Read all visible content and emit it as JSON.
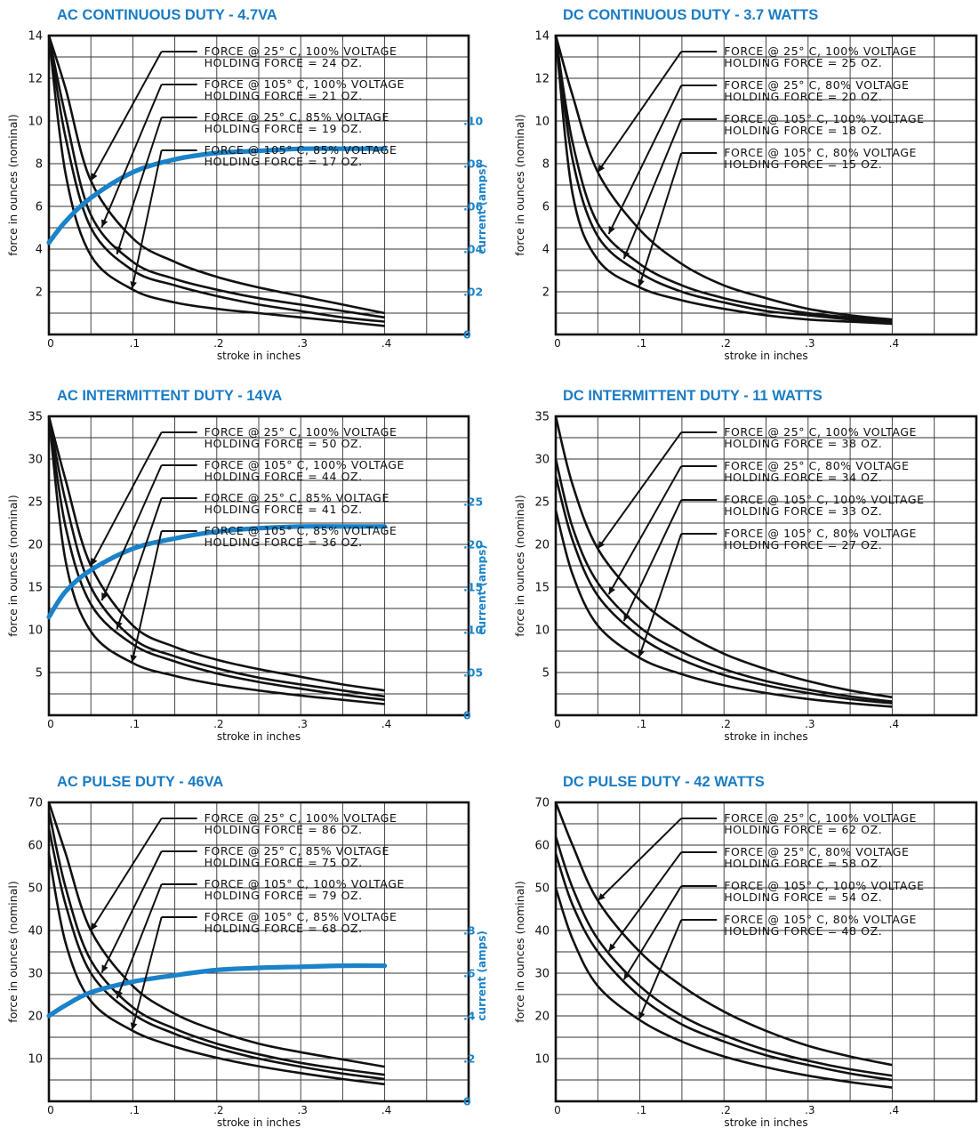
{
  "colors": {
    "curve": "#111111",
    "current": "#1a82c8",
    "title": "#1a7cc4"
  },
  "panels": [
    {
      "title": "AC CONTINUOUS DUTY - 4.7VA",
      "chart_data": {
        "type": "line",
        "title": "AC CONTINUOUS DUTY - 4.7VA",
        "xlabel": "stroke in inches",
        "ylabel": "force in ounces (nominal)",
        "y2label": "current (amps)",
        "xlim": [
          0,
          0.5
        ],
        "ylim": [
          0,
          14
        ],
        "y2lim": [
          0,
          0.14
        ],
        "xticks": [
          "0",
          ".1",
          ".2",
          ".3",
          ".4"
        ],
        "yticks": [
          "2",
          "4",
          "6",
          "8",
          "10",
          "12",
          "14"
        ],
        "y2ticks": [
          "0",
          ".02",
          ".04",
          ".06",
          ".08",
          ".10"
        ],
        "grid": true,
        "series": [
          {
            "name": "FORCE @ 25° C, 100% VOLTAGE",
            "holding": "HOLDING FORCE = 24 OZ.",
            "x": [
              0,
              0.02,
              0.05,
              0.1,
              0.15,
              0.2,
              0.25,
              0.3,
              0.35,
              0.4
            ],
            "y": [
              14,
              11.5,
              7.2,
              4.5,
              3.4,
              2.7,
              2.2,
              1.8,
              1.4,
              1.0
            ]
          },
          {
            "name": "FORCE @ 105° C, 100% VOLTAGE",
            "holding": "HOLDING FORCE = 21 OZ.",
            "x": [
              0,
              0.02,
              0.05,
              0.1,
              0.15,
              0.2,
              0.25,
              0.3,
              0.35,
              0.4
            ],
            "y": [
              14,
              10.2,
              5.6,
              3.4,
              2.6,
              2.1,
              1.7,
              1.4,
              1.1,
              0.8
            ]
          },
          {
            "name": "FORCE @ 25° C, 85% VOLTAGE",
            "holding": "HOLDING FORCE = 19 OZ.",
            "x": [
              0,
              0.02,
              0.05,
              0.1,
              0.15,
              0.2,
              0.25,
              0.3,
              0.35,
              0.4
            ],
            "y": [
              14,
              9.2,
              5.0,
              3.0,
              2.3,
              1.8,
              1.4,
              1.1,
              0.8,
              0.6
            ]
          },
          {
            "name": "FORCE @ 105° C, 85% VOLTAGE",
            "holding": "HOLDING FORCE = 17 OZ.",
            "x": [
              0,
              0.02,
              0.05,
              0.1,
              0.15,
              0.2,
              0.25,
              0.3,
              0.35,
              0.4
            ],
            "y": [
              14,
              7.5,
              3.7,
              2.1,
              1.5,
              1.2,
              1.0,
              0.8,
              0.6,
              0.4
            ]
          }
        ],
        "current": {
          "name": "current (amps)",
          "x": [
            0,
            0.02,
            0.05,
            0.1,
            0.15,
            0.2,
            0.25,
            0.3,
            0.35,
            0.4
          ],
          "y": [
            0.043,
            0.053,
            0.064,
            0.076,
            0.082,
            0.085,
            0.086,
            0.087,
            0.087,
            0.087
          ]
        }
      }
    },
    {
      "title": "DC CONTINUOUS DUTY - 3.7 WATTS",
      "chart_data": {
        "type": "line",
        "title": "DC CONTINUOUS DUTY - 3.7 WATTS",
        "xlabel": "stroke in inches",
        "ylabel": "force in ounces (nominal)",
        "xlim": [
          0,
          0.5
        ],
        "ylim": [
          0,
          14
        ],
        "xticks": [
          "0",
          ".1",
          ".2",
          ".3",
          ".4"
        ],
        "yticks": [
          "2",
          "4",
          "6",
          "8",
          "10",
          "12",
          "14"
        ],
        "grid": true,
        "series": [
          {
            "name": "FORCE @ 25° C, 100% VOLTAGE",
            "holding": "HOLDING FORCE = 25 OZ.",
            "x": [
              0,
              0.02,
              0.05,
              0.1,
              0.15,
              0.2,
              0.25,
              0.3,
              0.35,
              0.4
            ],
            "y": [
              14,
              11.2,
              7.6,
              4.9,
              3.3,
              2.3,
              1.7,
              1.2,
              0.9,
              0.7
            ]
          },
          {
            "name": "FORCE @ 25° C, 80% VOLTAGE",
            "holding": "HOLDING FORCE = 20 OZ.",
            "x": [
              0,
              0.02,
              0.05,
              0.1,
              0.15,
              0.2,
              0.25,
              0.3,
              0.35,
              0.4
            ],
            "y": [
              14,
              9.0,
              5.2,
              3.3,
              2.3,
              1.7,
              1.3,
              1.0,
              0.8,
              0.6
            ]
          },
          {
            "name": "FORCE @ 105° C, 100% VOLTAGE",
            "holding": "HOLDING FORCE = 18 OZ.",
            "x": [
              0,
              0.02,
              0.05,
              0.1,
              0.15,
              0.2,
              0.25,
              0.3,
              0.35,
              0.4
            ],
            "y": [
              14,
              8.2,
              4.6,
              2.9,
              2.0,
              1.5,
              1.1,
              0.9,
              0.7,
              0.5
            ]
          },
          {
            "name": "FORCE @ 105° C, 80% VOLTAGE",
            "holding": "HOLDING FORCE = 15 OZ.",
            "x": [
              0,
              0.02,
              0.05,
              0.1,
              0.15,
              0.2,
              0.25,
              0.3,
              0.35,
              0.4
            ],
            "y": [
              14,
              6.6,
              3.5,
              2.2,
              1.6,
              1.2,
              0.9,
              0.7,
              0.6,
              0.5
            ]
          }
        ]
      }
    },
    {
      "title": "AC INTERMITTENT DUTY - 14VA",
      "chart_data": {
        "type": "line",
        "title": "AC INTERMITTENT DUTY - 14VA",
        "xlabel": "stroke in inches",
        "ylabel": "force in ounces (nominal)",
        "y2label": "current (amps)",
        "xlim": [
          0,
          0.5
        ],
        "ylim": [
          0,
          35
        ],
        "y2lim": [
          0,
          0.35
        ],
        "xticks": [
          "0",
          ".1",
          ".2",
          ".3",
          ".4"
        ],
        "yticks": [
          "5",
          "10",
          "15",
          "20",
          "25",
          "30",
          "35"
        ],
        "y2ticks": [
          "0",
          ".05",
          ".10",
          ".15",
          ".20",
          ".25"
        ],
        "grid": true,
        "series": [
          {
            "name": "FORCE @ 25° C, 100% VOLTAGE",
            "holding": "HOLDING FORCE = 50 OZ.",
            "x": [
              0,
              0.02,
              0.05,
              0.1,
              0.15,
              0.2,
              0.25,
              0.3,
              0.35,
              0.4
            ],
            "y": [
              35,
              27.5,
              17.5,
              10.5,
              8.0,
              6.5,
              5.4,
              4.5,
              3.6,
              2.9
            ]
          },
          {
            "name": "FORCE @ 105° C, 100% VOLTAGE",
            "holding": "HOLDING FORCE = 44 OZ.",
            "x": [
              0,
              0.02,
              0.05,
              0.1,
              0.15,
              0.2,
              0.25,
              0.3,
              0.35,
              0.4
            ],
            "y": [
              35,
              25.0,
              15.0,
              9.0,
              6.9,
              5.5,
              4.4,
              3.6,
              2.9,
              2.2
            ]
          },
          {
            "name": "FORCE @ 25° C, 85% VOLTAGE",
            "holding": "HOLDING FORCE = 41 OZ.",
            "x": [
              0,
              0.02,
              0.05,
              0.1,
              0.15,
              0.2,
              0.25,
              0.3,
              0.35,
              0.4
            ],
            "y": [
              35,
              22.0,
              13.0,
              8.3,
              6.3,
              4.9,
              3.9,
              3.1,
              2.4,
              1.8
            ]
          },
          {
            "name": "FORCE @ 105° C, 85% VOLTAGE",
            "holding": "HOLDING FORCE = 36 OZ.",
            "x": [
              0,
              0.02,
              0.05,
              0.1,
              0.15,
              0.2,
              0.25,
              0.3,
              0.35,
              0.4
            ],
            "y": [
              35,
              18.0,
              9.8,
              6.1,
              4.6,
              3.6,
              2.9,
              2.3,
              1.8,
              1.3
            ]
          }
        ],
        "current": {
          "name": "current (amps)",
          "x": [
            0,
            0.02,
            0.05,
            0.1,
            0.15,
            0.2,
            0.25,
            0.3,
            0.35,
            0.4
          ],
          "y": [
            0.115,
            0.145,
            0.17,
            0.195,
            0.207,
            0.215,
            0.219,
            0.221,
            0.221,
            0.221
          ]
        }
      }
    },
    {
      "title": "DC INTERMITTENT DUTY - 11 WATTS",
      "chart_data": {
        "type": "line",
        "title": "DC INTERMITTENT DUTY - 11 WATTS",
        "xlabel": "stroke in inches",
        "ylabel": "force in ounces (nominal)",
        "xlim": [
          0,
          0.5
        ],
        "ylim": [
          0,
          35
        ],
        "xticks": [
          "0",
          ".1",
          ".2",
          ".3",
          ".4"
        ],
        "yticks": [
          "5",
          "10",
          "15",
          "20",
          "25",
          "30",
          "35"
        ],
        "grid": true,
        "series": [
          {
            "name": "FORCE @ 25° C, 100% VOLTAGE",
            "holding": "HOLDING FORCE = 38 OZ.",
            "x": [
              0,
              0.02,
              0.05,
              0.1,
              0.15,
              0.2,
              0.25,
              0.3,
              0.35,
              0.4
            ],
            "y": [
              35,
              27.0,
              19.5,
              13.5,
              9.8,
              7.2,
              5.4,
              4.0,
              2.9,
              2.1
            ]
          },
          {
            "name": "FORCE @ 25° C, 80% VOLTAGE",
            "holding": "HOLDING FORCE = 34 OZ.",
            "x": [
              0,
              0.02,
              0.05,
              0.1,
              0.15,
              0.2,
              0.25,
              0.3,
              0.35,
              0.4
            ],
            "y": [
              30,
              22.0,
              15.5,
              10.3,
              7.4,
              5.4,
              4.0,
              3.0,
              2.2,
              1.6
            ]
          },
          {
            "name": "FORCE @ 105° C, 100% VOLTAGE",
            "holding": "HOLDING FORCE = 33 OZ.",
            "x": [
              0,
              0.02,
              0.05,
              0.1,
              0.15,
              0.2,
              0.25,
              0.3,
              0.35,
              0.4
            ],
            "y": [
              28,
              20.5,
              14.0,
              9.2,
              6.5,
              4.7,
              3.5,
              2.6,
              1.9,
              1.4
            ]
          },
          {
            "name": "FORCE @ 105° C, 80% VOLTAGE",
            "holding": "HOLDING FORCE = 27 OZ.",
            "x": [
              0,
              0.02,
              0.05,
              0.1,
              0.15,
              0.2,
              0.25,
              0.3,
              0.35,
              0.4
            ],
            "y": [
              24,
              16.5,
              10.5,
              6.7,
              4.8,
              3.5,
              2.6,
              1.9,
              1.4,
              1.0
            ]
          }
        ]
      }
    },
    {
      "title": "AC PULSE DUTY - 46VA",
      "chart_data": {
        "type": "line",
        "title": "AC PULSE DUTY - 46VA",
        "xlabel": "stroke in inches",
        "ylabel": "force in ounces (nominal)",
        "y2label": "current (amps)",
        "xlim": [
          0,
          0.5
        ],
        "ylim": [
          0,
          70
        ],
        "y2lim": [
          0,
          1.4
        ],
        "xticks": [
          "0",
          ".1",
          ".2",
          ".3",
          ".4"
        ],
        "yticks": [
          "10",
          "20",
          "30",
          "40",
          "50",
          "60",
          "70"
        ],
        "y2ticks": [
          "0",
          ".2",
          ".4",
          ".6",
          ".8"
        ],
        "grid": true,
        "series": [
          {
            "name": "FORCE @ 25° C, 100% VOLTAGE",
            "holding": "HOLDING FORCE = 86 OZ.",
            "x": [
              0,
              0.02,
              0.05,
              0.1,
              0.15,
              0.2,
              0.25,
              0.3,
              0.35,
              0.4
            ],
            "y": [
              70,
              58.0,
              40.0,
              27.0,
              20.5,
              16.5,
              13.5,
              11.5,
              9.8,
              8.1
            ]
          },
          {
            "name": "FORCE @ 25° C, 85% VOLTAGE",
            "holding": "HOLDING FORCE = 75 OZ.",
            "x": [
              0,
              0.02,
              0.05,
              0.1,
              0.15,
              0.2,
              0.25,
              0.3,
              0.35,
              0.4
            ],
            "y": [
              68,
              50.0,
              33.0,
              22.0,
              17.0,
              13.5,
              11.0,
              9.0,
              7.5,
              6.2
            ]
          },
          {
            "name": "FORCE @ 105° C, 100% VOLTAGE",
            "holding": "HOLDING FORCE = 79 OZ.",
            "x": [
              0,
              0.02,
              0.05,
              0.1,
              0.15,
              0.2,
              0.25,
              0.3,
              0.35,
              0.4
            ],
            "y": [
              64,
              46.0,
              30.0,
              20.5,
              15.8,
              12.5,
              10.0,
              8.1,
              6.5,
              5.2
            ]
          },
          {
            "name": "FORCE @ 105° C, 85% VOLTAGE",
            "holding": "HOLDING FORCE = 68 OZ.",
            "x": [
              0,
              0.02,
              0.05,
              0.1,
              0.15,
              0.2,
              0.25,
              0.3,
              0.35,
              0.4
            ],
            "y": [
              58,
              37.0,
              23.5,
              16.5,
              12.8,
              10.2,
              8.2,
              6.6,
              5.2,
              4.0
            ]
          }
        ],
        "current": {
          "name": "current (amps)",
          "x": [
            0,
            0.02,
            0.05,
            0.1,
            0.15,
            0.2,
            0.25,
            0.3,
            0.35,
            0.4
          ],
          "y": [
            0.4,
            0.45,
            0.51,
            0.56,
            0.59,
            0.615,
            0.625,
            0.63,
            0.635,
            0.635
          ]
        }
      }
    },
    {
      "title": "DC PULSE DUTY - 42 WATTS",
      "chart_data": {
        "type": "line",
        "title": "DC PULSE DUTY - 42 WATTS",
        "xlabel": "stroke in inches",
        "ylabel": "force in ounces (nominal)",
        "xlim": [
          0,
          0.5
        ],
        "ylim": [
          0,
          70
        ],
        "xticks": [
          "0",
          ".1",
          ".2",
          ".3",
          ".4"
        ],
        "yticks": [
          "10",
          "20",
          "30",
          "40",
          "50",
          "60",
          "70"
        ],
        "grid": true,
        "series": [
          {
            "name": "FORCE @ 25° C, 100% VOLTAGE",
            "holding": "HOLDING FORCE = 62 OZ.",
            "x": [
              0,
              0.02,
              0.05,
              0.1,
              0.15,
              0.2,
              0.25,
              0.3,
              0.35,
              0.4
            ],
            "y": [
              70,
              60.0,
              47.0,
              35.0,
              27.0,
              21.0,
              16.5,
              13.0,
              10.5,
              8.5
            ]
          },
          {
            "name": "FORCE @ 25° C, 80% VOLTAGE",
            "holding": "HOLDING FORCE = 58 OZ.",
            "x": [
              0,
              0.02,
              0.05,
              0.1,
              0.15,
              0.2,
              0.25,
              0.3,
              0.35,
              0.4
            ],
            "y": [
              62,
              50.0,
              38.0,
              27.0,
              20.0,
              15.5,
              12.0,
              9.5,
              7.5,
              6.0
            ]
          },
          {
            "name": "FORCE @ 105° C, 100% VOLTAGE",
            "holding": "HOLDING FORCE = 54 OZ.",
            "x": [
              0,
              0.02,
              0.05,
              0.1,
              0.15,
              0.2,
              0.25,
              0.3,
              0.35,
              0.4
            ],
            "y": [
              58,
              46.0,
              35.0,
              24.5,
              18.0,
              14.0,
              10.8,
              8.5,
              6.5,
              5.0
            ]
          },
          {
            "name": "FORCE @ 105° C, 80% VOLTAGE",
            "holding": "HOLDING FORCE = 48 OZ.",
            "x": [
              0,
              0.02,
              0.05,
              0.1,
              0.15,
              0.2,
              0.25,
              0.3,
              0.35,
              0.4
            ],
            "y": [
              50,
              38.0,
              27.0,
              19.0,
              14.0,
              10.5,
              8.0,
              6.0,
              4.5,
              3.2
            ]
          }
        ]
      }
    }
  ]
}
